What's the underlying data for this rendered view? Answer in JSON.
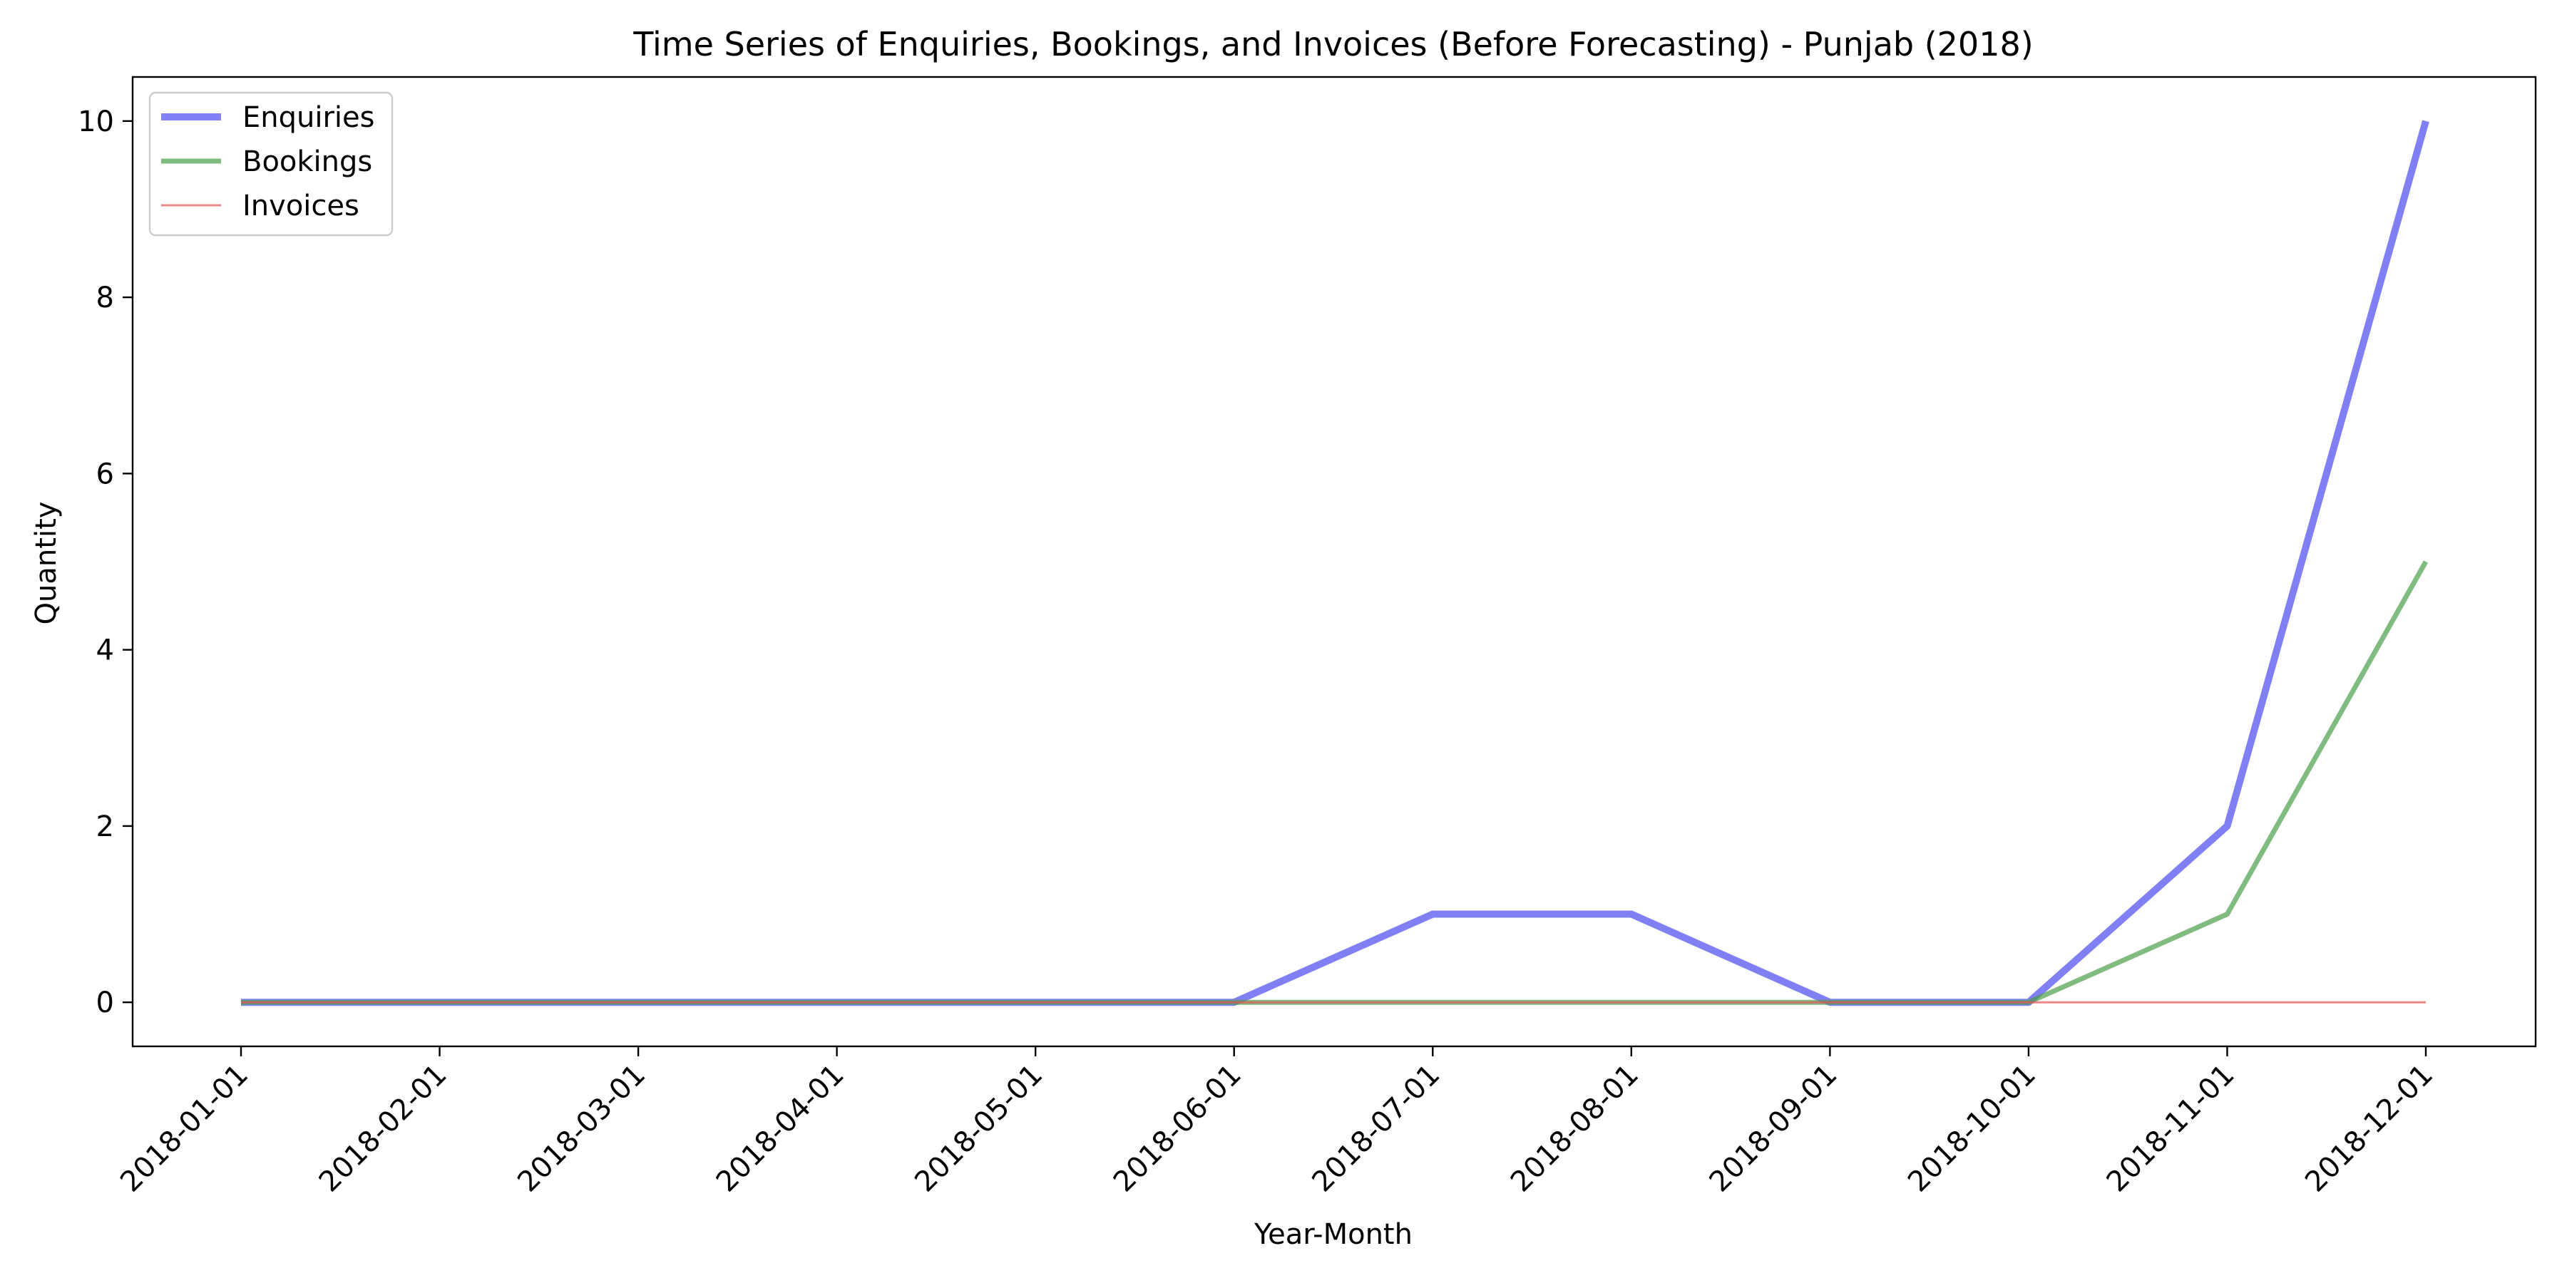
{
  "chart_data": {
    "type": "line",
    "title": "Time Series of Enquiries, Bookings, and Invoices (Before Forecasting) - Punjab (2018)",
    "xlabel": "Year-Month",
    "ylabel": "Quantity",
    "x": [
      "2018-01-01",
      "2018-02-01",
      "2018-03-01",
      "2018-04-01",
      "2018-05-01",
      "2018-06-01",
      "2018-07-01",
      "2018-08-01",
      "2018-09-01",
      "2018-10-01",
      "2018-11-01",
      "2018-12-01"
    ],
    "yticks": [
      0,
      2,
      4,
      6,
      8,
      10
    ],
    "ylim": [
      -0.5,
      10.5
    ],
    "grid": false,
    "legend_position": "top-left",
    "series": [
      {
        "name": "Enquiries",
        "color": "#4a4af0",
        "values": [
          0,
          0,
          0,
          0,
          0,
          0,
          1,
          1,
          0,
          0,
          2,
          10
        ]
      },
      {
        "name": "Bookings",
        "color": "#4a9e4a",
        "values": [
          0,
          0,
          0,
          0,
          0,
          0,
          0,
          0,
          0,
          0,
          1,
          5
        ]
      },
      {
        "name": "Invoices",
        "color": "#e85454",
        "values": [
          0,
          0,
          0,
          0,
          0,
          0,
          0,
          0,
          0,
          0,
          0,
          0
        ]
      }
    ]
  }
}
